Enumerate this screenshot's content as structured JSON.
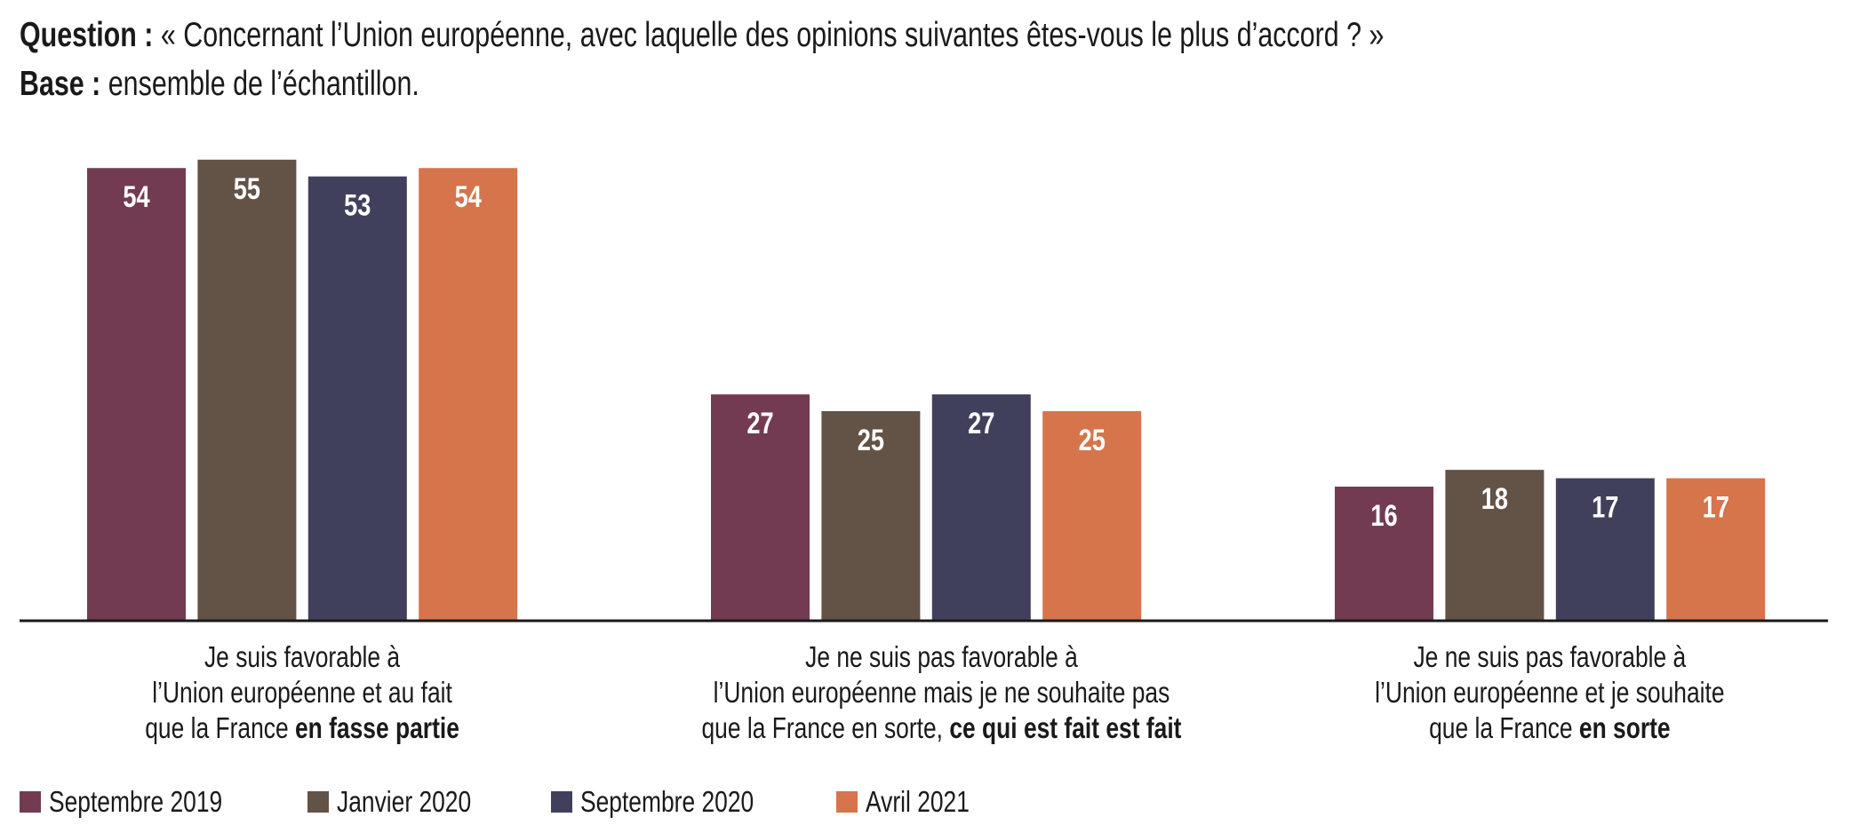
{
  "header": {
    "question_label": "Question :",
    "question_text": "« Concernant l’Union européenne, avec laquelle des opinions suivantes êtes-vous le plus d’accord ? »",
    "base_label": "Base :",
    "base_text": "ensemble de l’échantillon."
  },
  "chart_data": {
    "type": "bar",
    "title": "« Concernant l’Union européenne, avec laquelle des opinions suivantes êtes-vous le plus d’accord ? »",
    "xlabel": "",
    "ylabel": "",
    "ylim": [
      0,
      74
    ],
    "grid": false,
    "legend_position": "bottom-left",
    "categories": [
      {
        "lines": [
          {
            "normal": "Je suis favorable à",
            "bold": ""
          },
          {
            "normal": "l’Union européenne et au fait",
            "bold": ""
          },
          {
            "normal": "que la France ",
            "bold": "en fasse partie"
          }
        ],
        "full": "Je suis favorable à l’Union européenne et au fait que la France en fasse partie"
      },
      {
        "lines": [
          {
            "normal": "Je ne suis pas favorable à",
            "bold": ""
          },
          {
            "normal": "l’Union européenne mais je ne souhaite pas",
            "bold": ""
          },
          {
            "normal": "que la France en sorte, ",
            "bold": "ce qui est fait est fait"
          }
        ],
        "full": "Je ne suis pas favorable à l’Union européenne mais je ne souhaite pas que la France en sorte, ce qui est fait est fait"
      },
      {
        "lines": [
          {
            "normal": "Je ne suis pas favorable à",
            "bold": ""
          },
          {
            "normal": "l’Union européenne et je souhaite",
            "bold": ""
          },
          {
            "normal": "que la France ",
            "bold": "en sorte"
          }
        ],
        "full": "Je ne suis pas favorable à l’Union européenne et je souhaite que la France en sorte"
      }
    ],
    "series": [
      {
        "name": "Septembre 2019",
        "color": "#733B52",
        "values": [
          54,
          27,
          16
        ]
      },
      {
        "name": "Janvier 2020",
        "color": "#635246",
        "values": [
          55,
          25,
          18
        ]
      },
      {
        "name": "Septembre 2020",
        "color": "#41405C",
        "values": [
          53,
          27,
          17
        ]
      },
      {
        "name": "Avril 2021",
        "color": "#D6744C",
        "values": [
          54,
          25,
          17
        ]
      }
    ]
  }
}
